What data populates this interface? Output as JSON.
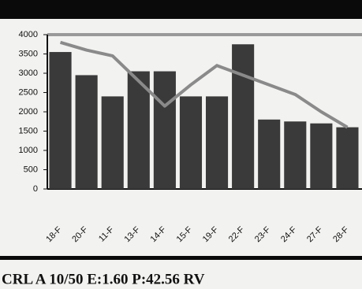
{
  "chart_data": {
    "type": "bar_line",
    "categories": [
      "18-F",
      "20-F",
      "11-F",
      "13-F",
      "14-F",
      "15-F",
      "19-F",
      "22-F",
      "23-F",
      "24-F",
      "27-F",
      "28-F"
    ],
    "series": [
      {
        "type": "bar",
        "color": "#3a3a3a",
        "values": [
          3550,
          2950,
          2400,
          3050,
          3050,
          2400,
          2400,
          3750,
          1800,
          1750,
          1700,
          1600
        ]
      },
      {
        "type": "line",
        "color": "#8a8a8a",
        "values": [
          3800,
          3600,
          3450,
          2800,
          2150,
          2700,
          3200,
          2950,
          2700,
          2450,
          2000,
          1600
        ]
      }
    ],
    "ylim": [
      0,
      4000
    ],
    "yticks": [
      0,
      500,
      1000,
      1500,
      2000,
      2500,
      3000,
      3500,
      4000
    ],
    "footer": "CRL    A 10/50 E:1.60 P:42.56 RV"
  }
}
